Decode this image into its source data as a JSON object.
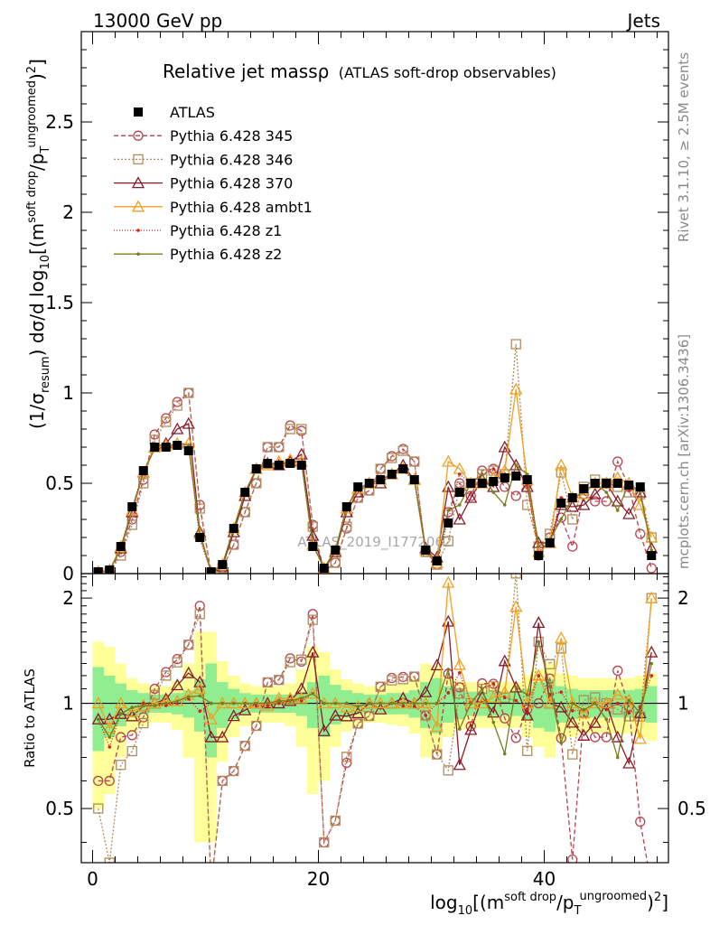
{
  "header": {
    "left": "13000 GeV pp",
    "right": "Jets",
    "title": "Relative jet mass",
    "title_symbol": "ρ",
    "subtitle": "(ATLAS soft-drop observables)",
    "watermark": "ATLAS_2019_I1772062",
    "side_rivet": "Rivet 3.1.10, ≥ 2.5M events",
    "side_mcplots": "mcplots.cern.ch [arXiv:1306.3436]"
  },
  "axes": {
    "ylabel_main": "(1/σresum) dσ/d log10[(m soft drop/pT ungroomed)2]",
    "ylabel_main_parts": {
      "a": "(1/σ",
      "a_sub": "resum",
      "b": ") dσ/d log",
      "b_sub": "10",
      "c": "[(m",
      "c_sup": "soft drop",
      "d": "/p",
      "d_sub": "T",
      "d_sup": "ungroomed",
      "e": ")",
      "e_sup": "2",
      "f": "]"
    },
    "ylabel_ratio": "Ratio to ATLAS",
    "xlabel_parts": {
      "a": "log",
      "a_sub": "10",
      "b": "[(m",
      "b_sup": "soft drop",
      "c": "/p",
      "c_sub": "T",
      "c_sup": "ungroomed",
      "d": ")",
      "d_sup": "2",
      "e": "]"
    },
    "x_ticks": [
      "0",
      "20",
      "40"
    ],
    "y_ticks_main": [
      "0",
      "0.5",
      "1",
      "1.5",
      "2",
      "2.5"
    ],
    "y_ticks_ratio": [
      "0.5",
      "1",
      "2"
    ]
  },
  "legend": [
    {
      "label": "ATLAS",
      "color": "#000000",
      "marker": "square-filled",
      "dash": ""
    },
    {
      "label": "Pythia 6.428 345",
      "color": "#b8424f",
      "marker": "circle-open",
      "dash": "5,3"
    },
    {
      "label": "Pythia 6.428 346",
      "color": "#b08c5c",
      "marker": "square-open",
      "dash": "2,2"
    },
    {
      "label": "Pythia 6.428 370",
      "color": "#8b1a28",
      "marker": "triangle-open",
      "dash": ""
    },
    {
      "label": "Pythia 6.428 ambt1",
      "color": "#f0a020",
      "marker": "triangle-open",
      "dash": ""
    },
    {
      "label": "Pythia 6.428 z1",
      "color": "#d02020",
      "marker": "dot",
      "dash": "1,2"
    },
    {
      "label": "Pythia 6.428 z2",
      "color": "#7c7c1e",
      "marker": "dot",
      "dash": ""
    }
  ],
  "chart_data": {
    "type": "line",
    "xlim": [
      -1,
      51
    ],
    "ylim_main": [
      0,
      3
    ],
    "ylim_ratio": [
      0.35,
      2.35
    ],
    "ratio_log_scale": true,
    "x": [
      0.5,
      1.5,
      2.5,
      3.5,
      4.5,
      5.5,
      6.5,
      7.5,
      8.5,
      9.5,
      10.5,
      11.5,
      12.5,
      13.5,
      14.5,
      15.5,
      16.5,
      17.5,
      18.5,
      19.5,
      20.5,
      21.5,
      22.5,
      23.5,
      24.5,
      25.5,
      26.5,
      27.5,
      28.5,
      29.5,
      30.5,
      31.5,
      32.5,
      33.5,
      34.5,
      35.5,
      36.5,
      37.5,
      38.5,
      39.5,
      40.5,
      41.5,
      42.5,
      43.5,
      44.5,
      45.5,
      46.5,
      47.5,
      48.5,
      49.5
    ],
    "data": [
      0.01,
      0.02,
      0.15,
      0.37,
      0.57,
      0.7,
      0.7,
      0.71,
      0.68,
      0.2,
      0.01,
      0.05,
      0.25,
      0.45,
      0.58,
      0.61,
      0.6,
      0.61,
      0.6,
      0.15,
      0.03,
      0.13,
      0.37,
      0.48,
      0.5,
      0.52,
      0.55,
      0.58,
      0.52,
      0.13,
      0.07,
      0.28,
      0.45,
      0.5,
      0.5,
      0.51,
      0.53,
      0.54,
      0.52,
      0.1,
      0.17,
      0.39,
      0.42,
      0.47,
      0.5,
      0.5,
      0.5,
      0.49,
      0.48,
      0.1
    ],
    "data_band_inner": [
      0.27,
      0.2,
      0.14,
      0.09,
      0.07,
      0.06,
      0.06,
      0.07,
      0.09,
      0.17,
      0.3,
      0.15,
      0.1,
      0.07,
      0.06,
      0.06,
      0.06,
      0.06,
      0.08,
      0.15,
      0.2,
      0.13,
      0.09,
      0.07,
      0.06,
      0.06,
      0.07,
      0.07,
      0.09,
      0.15,
      0.18,
      0.12,
      0.1,
      0.08,
      0.08,
      0.08,
      0.08,
      0.08,
      0.1,
      0.15,
      0.17,
      0.12,
      0.1,
      0.09,
      0.09,
      0.09,
      0.09,
      0.09,
      0.1,
      0.12
    ],
    "data_band_outer": [
      0.5,
      0.45,
      0.3,
      0.18,
      0.14,
      0.12,
      0.12,
      0.16,
      0.3,
      0.6,
      0.6,
      0.32,
      0.2,
      0.14,
      0.12,
      0.12,
      0.12,
      0.14,
      0.25,
      0.45,
      0.4,
      0.25,
      0.17,
      0.14,
      0.12,
      0.12,
      0.13,
      0.14,
      0.18,
      0.3,
      0.28,
      0.2,
      0.16,
      0.15,
      0.15,
      0.15,
      0.15,
      0.15,
      0.2,
      0.25,
      0.3,
      0.22,
      0.2,
      0.18,
      0.18,
      0.18,
      0.18,
      0.18,
      0.2,
      0.22
    ],
    "series": [
      {
        "name": "Pythia 6.428 345",
        "values": [
          0.006,
          0.012,
          0.12,
          0.3,
          0.52,
          0.77,
          0.86,
          0.95,
          1.0,
          0.38,
          0.003,
          0.03,
          0.16,
          0.34,
          0.5,
          0.7,
          0.7,
          0.82,
          0.79,
          0.27,
          0.012,
          0.06,
          0.25,
          0.42,
          0.46,
          0.58,
          0.65,
          0.69,
          0.62,
          0.12,
          0.05,
          0.34,
          0.5,
          0.43,
          0.57,
          0.58,
          0.48,
          0.43,
          0.5,
          0.1,
          0.2,
          0.31,
          0.15,
          0.44,
          0.4,
          0.4,
          0.62,
          0.48,
          0.22,
          0.03
        ]
      },
      {
        "name": "Pythia 6.428 346",
        "values": [
          0.005,
          0.007,
          0.1,
          0.27,
          0.5,
          0.74,
          0.84,
          0.93,
          1.0,
          0.36,
          0.003,
          0.03,
          0.16,
          0.34,
          0.5,
          0.7,
          0.7,
          0.8,
          0.8,
          0.26,
          0.012,
          0.06,
          0.26,
          0.42,
          0.46,
          0.58,
          0.64,
          0.68,
          0.62,
          0.12,
          0.05,
          0.18,
          0.48,
          0.5,
          0.55,
          0.57,
          0.55,
          1.27,
          0.38,
          0.15,
          0.22,
          0.56,
          0.3,
          0.48,
          0.52,
          0.5,
          0.48,
          0.45,
          0.44,
          0.2
        ]
      },
      {
        "name": "Pythia 6.428 370",
        "values": [
          0.009,
          0.018,
          0.14,
          0.34,
          0.56,
          0.7,
          0.72,
          0.8,
          0.83,
          0.23,
          0.008,
          0.04,
          0.23,
          0.43,
          0.58,
          0.61,
          0.6,
          0.62,
          0.66,
          0.21,
          0.025,
          0.12,
          0.34,
          0.45,
          0.5,
          0.5,
          0.55,
          0.6,
          0.52,
          0.14,
          0.09,
          0.48,
          0.3,
          0.42,
          0.52,
          0.48,
          0.7,
          0.6,
          0.48,
          0.17,
          0.17,
          0.38,
          0.37,
          0.38,
          0.44,
          0.5,
          0.4,
          0.33,
          0.45,
          0.14
        ]
      },
      {
        "name": "Pythia 6.428 ambt1",
        "values": [
          0.01,
          0.017,
          0.15,
          0.35,
          0.56,
          0.7,
          0.71,
          0.72,
          0.72,
          0.22,
          0.009,
          0.05,
          0.25,
          0.45,
          0.58,
          0.6,
          0.62,
          0.63,
          0.62,
          0.16,
          0.03,
          0.13,
          0.36,
          0.47,
          0.5,
          0.52,
          0.55,
          0.58,
          0.52,
          0.13,
          0.06,
          0.62,
          0.58,
          0.5,
          0.5,
          0.53,
          0.57,
          1.02,
          0.52,
          0.12,
          0.17,
          0.6,
          0.42,
          0.44,
          0.5,
          0.5,
          0.53,
          0.5,
          0.38,
          0.2
        ]
      },
      {
        "name": "Pythia 6.428 z1",
        "values": [
          0.009,
          0.015,
          0.14,
          0.36,
          0.57,
          0.69,
          0.69,
          0.71,
          0.7,
          0.19,
          0.01,
          0.05,
          0.25,
          0.45,
          0.57,
          0.6,
          0.6,
          0.62,
          0.61,
          0.16,
          0.03,
          0.13,
          0.37,
          0.47,
          0.5,
          0.52,
          0.55,
          0.57,
          0.51,
          0.12,
          0.07,
          0.3,
          0.55,
          0.5,
          0.55,
          0.58,
          0.55,
          0.55,
          0.5,
          0.12,
          0.18,
          0.42,
          0.4,
          0.45,
          0.5,
          0.48,
          0.5,
          0.46,
          0.47,
          0.12
        ]
      },
      {
        "name": "Pythia 6.428 z2",
        "values": [
          0.009,
          0.016,
          0.14,
          0.36,
          0.56,
          0.69,
          0.7,
          0.72,
          0.71,
          0.21,
          0.01,
          0.05,
          0.25,
          0.45,
          0.58,
          0.61,
          0.61,
          0.62,
          0.62,
          0.16,
          0.03,
          0.13,
          0.37,
          0.47,
          0.5,
          0.52,
          0.55,
          0.58,
          0.52,
          0.13,
          0.07,
          0.35,
          0.38,
          0.5,
          0.55,
          0.45,
          0.38,
          0.6,
          0.55,
          0.15,
          0.19,
          0.3,
          0.42,
          0.45,
          0.5,
          0.45,
          0.35,
          0.5,
          0.45,
          0.13
        ]
      }
    ]
  }
}
